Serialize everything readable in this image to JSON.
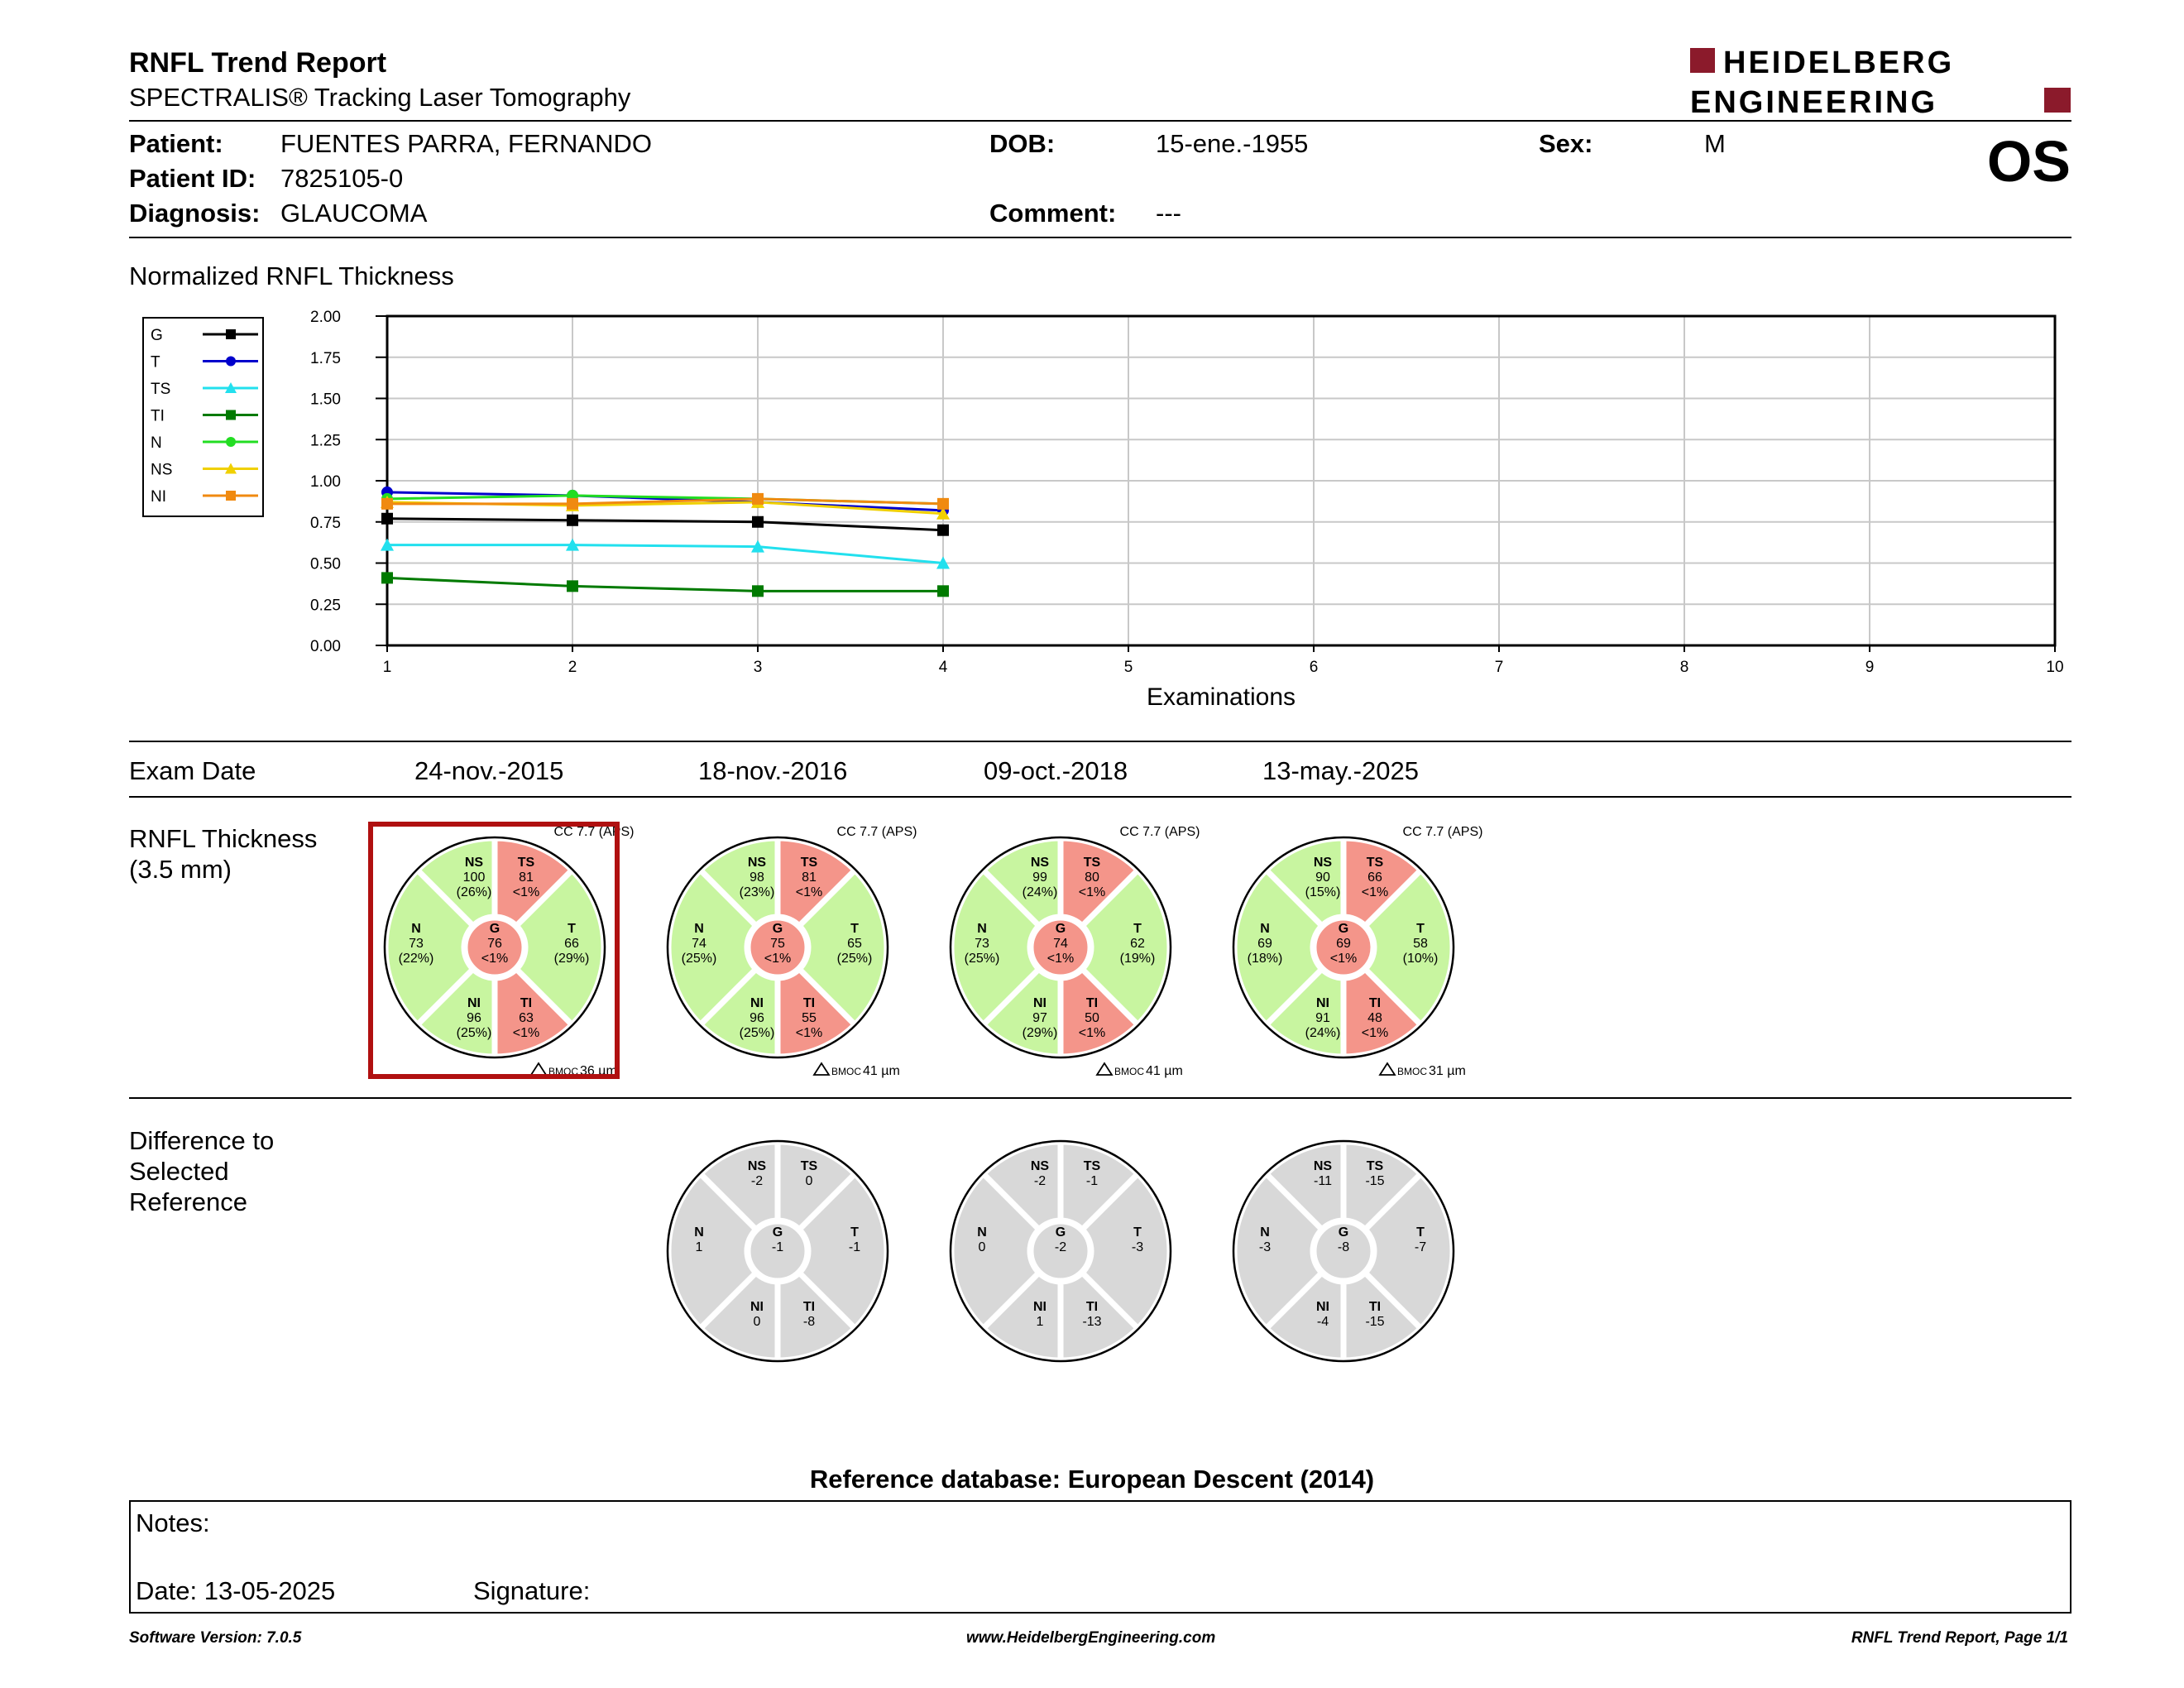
{
  "header": {
    "title": "RNFL Trend Report",
    "subtitle": "SPECTRALIS® Tracking Laser Tomography",
    "logo_line1": "HEIDELBERG",
    "logo_line2": "ENGINEERING",
    "eye": "OS"
  },
  "patient": {
    "patient_label": "Patient:",
    "patient_value": "FUENTES PARRA, FERNANDO",
    "id_label": "Patient ID:",
    "id_value": "7825105-0",
    "diag_label": "Diagnosis:",
    "diag_value": "GLAUCOMA",
    "dob_label": "DOB:",
    "dob_value": "15-ene.-1955",
    "comment_label": "Comment:",
    "comment_value": "---",
    "sex_label": "Sex:",
    "sex_value": "M"
  },
  "chart_title": "Normalized RNFL Thickness",
  "chart_data": {
    "type": "line",
    "xlabel": "Examinations",
    "ylabel": "",
    "x_ticks": [
      1,
      2,
      3,
      4,
      5,
      6,
      7,
      8,
      9,
      10
    ],
    "y_ticks": [
      "0.00",
      "0.25",
      "0.50",
      "0.75",
      "1.00",
      "1.25",
      "1.50",
      "1.75",
      "2.00"
    ],
    "xlim": [
      1,
      10
    ],
    "ylim": [
      0,
      2
    ],
    "grid": true,
    "legend_position": "left",
    "x": [
      1,
      2,
      3,
      4
    ],
    "series": [
      {
        "name": "G",
        "color": "#000000",
        "marker": "square",
        "values": [
          0.77,
          0.76,
          0.75,
          0.7
        ]
      },
      {
        "name": "T",
        "color": "#0000cc",
        "marker": "circle",
        "values": [
          0.93,
          0.91,
          0.87,
          0.82
        ]
      },
      {
        "name": "TS",
        "color": "#22e0ee",
        "marker": "triangle",
        "values": [
          0.61,
          0.61,
          0.6,
          0.5
        ]
      },
      {
        "name": "TI",
        "color": "#007a00",
        "marker": "square",
        "values": [
          0.41,
          0.36,
          0.33,
          0.33
        ]
      },
      {
        "name": "N",
        "color": "#22dd22",
        "marker": "circle",
        "values": [
          0.89,
          0.91,
          0.89,
          0.86
        ]
      },
      {
        "name": "NS",
        "color": "#f0d000",
        "marker": "triangle",
        "values": [
          0.87,
          0.85,
          0.87,
          0.8
        ]
      },
      {
        "name": "NI",
        "color": "#f08a10",
        "marker": "square",
        "values": [
          0.86,
          0.86,
          0.89,
          0.86
        ]
      }
    ]
  },
  "exam_section": {
    "label": "Exam Date",
    "dates": [
      "24-nov.-2015",
      "18-nov.-2016",
      "09-oct.-2018",
      "13-may.-2025"
    ]
  },
  "thickness_section": {
    "label_line1": "RNFL Thickness",
    "label_line2": "(3.5 mm)",
    "cc_label": "CC 7.7 (APS)",
    "bmo_prefix": "BMOC",
    "bmo_values": [
      "36 µm",
      "41 µm",
      "41 µm",
      "31 µm"
    ],
    "selected_index": 0,
    "colors": {
      "normal": "#c8f5a0",
      "abnormal": "#f4958a",
      "difference": "#d8d8d8"
    },
    "circles": [
      {
        "NS": [
          "100",
          "(26%)"
        ],
        "TS": [
          "81",
          "<1%"
        ],
        "N": [
          "73",
          "(22%)"
        ],
        "G": [
          "76",
          "<1%"
        ],
        "T": [
          "66",
          "(29%)"
        ],
        "NI": [
          "96",
          "(25%)"
        ],
        "TI": [
          "63",
          "<1%"
        ],
        "abn": [
          "TS",
          "TI",
          "G"
        ]
      },
      {
        "NS": [
          "98",
          "(23%)"
        ],
        "TS": [
          "81",
          "<1%"
        ],
        "N": [
          "74",
          "(25%)"
        ],
        "G": [
          "75",
          "<1%"
        ],
        "T": [
          "65",
          "(25%)"
        ],
        "NI": [
          "96",
          "(25%)"
        ],
        "TI": [
          "55",
          "<1%"
        ],
        "abn": [
          "TS",
          "TI",
          "G"
        ]
      },
      {
        "NS": [
          "99",
          "(24%)"
        ],
        "TS": [
          "80",
          "<1%"
        ],
        "N": [
          "73",
          "(25%)"
        ],
        "G": [
          "74",
          "<1%"
        ],
        "T": [
          "62",
          "(19%)"
        ],
        "NI": [
          "97",
          "(29%)"
        ],
        "TI": [
          "50",
          "<1%"
        ],
        "abn": [
          "TS",
          "TI",
          "G"
        ]
      },
      {
        "NS": [
          "90",
          "(15%)"
        ],
        "TS": [
          "66",
          "<1%"
        ],
        "N": [
          "69",
          "(18%)"
        ],
        "G": [
          "69",
          "<1%"
        ],
        "T": [
          "58",
          "(10%)"
        ],
        "NI": [
          "91",
          "(24%)"
        ],
        "TI": [
          "48",
          "<1%"
        ],
        "abn": [
          "TS",
          "TI",
          "G"
        ]
      }
    ]
  },
  "difference_section": {
    "label_line1": "Difference to",
    "label_line2": "Selected",
    "label_line3": "Reference",
    "circles": [
      {
        "NS": "-2",
        "TS": "0",
        "N": "1",
        "G": "-1",
        "T": "-1",
        "NI": "0",
        "TI": "-8"
      },
      {
        "NS": "-2",
        "TS": "-1",
        "N": "0",
        "G": "-2",
        "T": "-3",
        "NI": "1",
        "TI": "-13"
      },
      {
        "NS": "-11",
        "TS": "-15",
        "N": "-3",
        "G": "-8",
        "T": "-7",
        "NI": "-4",
        "TI": "-15"
      }
    ]
  },
  "reference_db": "Reference database: European Descent (2014)",
  "notes": {
    "label": "Notes:",
    "date_label": "Date: 13-05-2025",
    "signature_label": "Signature:"
  },
  "footer": {
    "version": "Software Version: 7.0.5",
    "url": "www.HeidelbergEngineering.com",
    "page": "RNFL Trend Report, Page 1/1"
  }
}
